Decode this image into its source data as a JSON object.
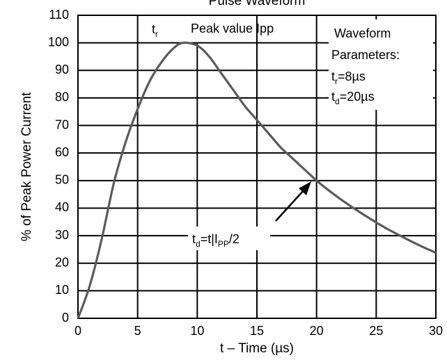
{
  "chart_data": {
    "type": "line",
    "top_label": "Pulse Waveform",
    "xlabel": "t – Time (µs)",
    "ylabel": "% of Peak Power Current",
    "xlim": [
      0,
      30
    ],
    "ylim": [
      0,
      110
    ],
    "x_ticks": [
      "0",
      "5",
      "10",
      "15",
      "20",
      "25",
      "30"
    ],
    "y_ticks": [
      "0",
      "10",
      "20",
      "30",
      "40",
      "50",
      "60",
      "70",
      "80",
      "90",
      "100",
      "110"
    ],
    "grid": true,
    "series": [
      {
        "color": "#5a5a5a",
        "x": [
          0,
          1,
          2,
          3,
          4,
          5,
          6,
          7,
          8,
          8.8,
          10,
          11,
          12,
          13,
          14,
          15,
          16,
          17,
          18,
          19,
          20,
          21,
          22,
          23,
          24,
          25,
          26,
          27,
          28,
          29,
          30
        ],
        "y": [
          0,
          12,
          29,
          49,
          64,
          76,
          86,
          93,
          98,
          100,
          99,
          95,
          89,
          83,
          77,
          72,
          67,
          62,
          58,
          54,
          50,
          46.5,
          43.3,
          40.3,
          37.5,
          34.8,
          32.3,
          30,
          27.8,
          25.7,
          23.8
        ]
      }
    ],
    "annotations": {
      "tr": {
        "main": "t",
        "sub": "r"
      },
      "peak": "Peak value Ipp",
      "params_title_1": "Waveform",
      "params_title_2": "Parameters:",
      "tr_value": {
        "main": "t",
        "sub": "r",
        "rest": "=8µs"
      },
      "td_value": {
        "main": "t",
        "sub": "d",
        "rest": "=20µs"
      },
      "td_def": {
        "main": "t",
        "sub": "d",
        "mid": "=t|I",
        "sub2": "PP",
        "rest": "/2"
      }
    }
  }
}
